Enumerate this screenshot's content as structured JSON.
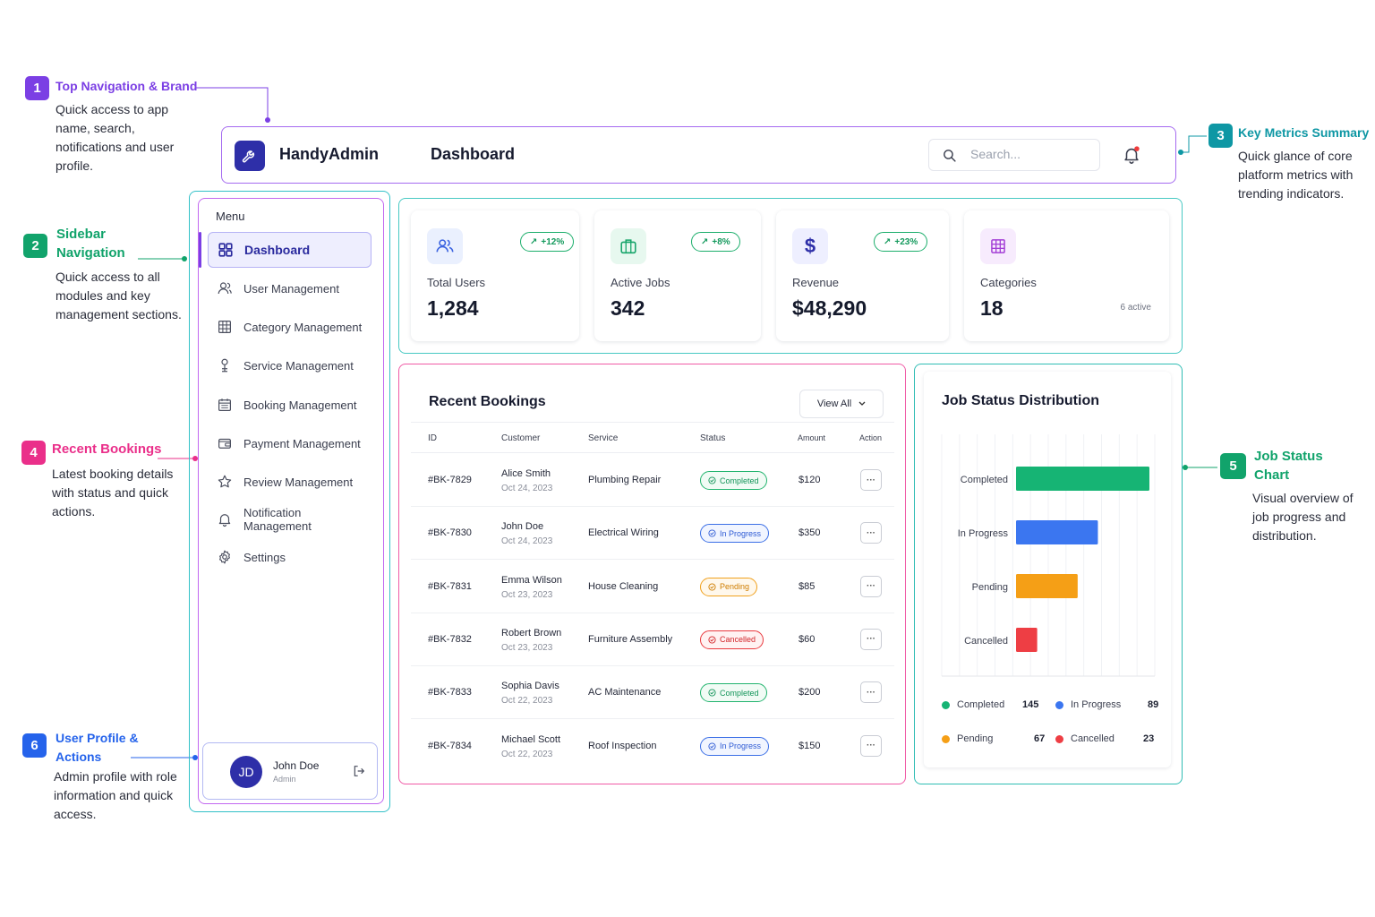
{
  "annotations": [
    {
      "num": "1",
      "title": "Top Navigation & Brand",
      "desc": "Quick access to app name, search, notifications and user profile.",
      "color": "#7b3fe4"
    },
    {
      "num": "2",
      "title": "Sidebar Navigation",
      "desc": "Quick access to all modules and key management sections.",
      "color": "#11a36b"
    },
    {
      "num": "3",
      "title": "Key Metrics Summary",
      "desc": "Quick glance of core platform metrics with trending indicators.",
      "color": "#0e97a4"
    },
    {
      "num": "4",
      "title": "Recent Bookings",
      "desc": "Latest booking details with status and quick actions.",
      "color": "#ea2f8a"
    },
    {
      "num": "5",
      "title": "Job Status Chart",
      "desc": "Visual overview of job progress and distribution.",
      "color": "#11a36b"
    },
    {
      "num": "6",
      "title": "User Profile & Actions",
      "desc": "Admin profile with role information and quick access.",
      "color": "#2563eb"
    }
  ],
  "header": {
    "brand": "HandyAdmin",
    "page_title": "Dashboard",
    "search_placeholder": "Search..."
  },
  "sidebar": {
    "menu_label": "Menu",
    "items": [
      {
        "label": "Dashboard",
        "icon": "grid-icon",
        "active": true
      },
      {
        "label": "User Management",
        "icon": "user-icon"
      },
      {
        "label": "Category Management",
        "icon": "table-icon"
      },
      {
        "label": "Service Management",
        "icon": "tool-icon"
      },
      {
        "label": "Booking Management",
        "icon": "calendar-icon"
      },
      {
        "label": "Payment Management",
        "icon": "wallet-icon"
      },
      {
        "label": "Review Management",
        "icon": "star-icon"
      },
      {
        "label": "Notification Management",
        "icon": "bell-icon"
      },
      {
        "label": "Settings",
        "icon": "gear-icon"
      }
    ],
    "profile": {
      "initials": "JD",
      "name": "John Doe",
      "role": "Admin"
    }
  },
  "metrics": [
    {
      "label": "Total Users",
      "value": "1,284",
      "trend": "+12%",
      "icon": "users-icon"
    },
    {
      "label": "Active Jobs",
      "value": "342",
      "trend": "+8%",
      "icon": "briefcase-icon"
    },
    {
      "label": "Revenue",
      "value": "$48,290",
      "trend": "+23%",
      "icon": "dollar-icon"
    },
    {
      "label": "Categories",
      "value": "18",
      "note": "6 active",
      "icon": "grid-icon"
    }
  ],
  "bookings": {
    "title": "Recent Bookings",
    "view_all": "View All",
    "columns": [
      "ID",
      "Customer",
      "Service",
      "Status",
      "Amount",
      "Action"
    ],
    "rows": [
      {
        "id": "#BK-7829",
        "customer": "Alice Smith",
        "date": "Oct 24, 2023",
        "service": "Plumbing Repair",
        "status": "Completed",
        "amount": "$120"
      },
      {
        "id": "#BK-7830",
        "customer": "John Doe",
        "date": "Oct 24, 2023",
        "service": "Electrical Wiring",
        "status": "In Progress",
        "amount": "$350"
      },
      {
        "id": "#BK-7831",
        "customer": "Emma Wilson",
        "date": "Oct 23, 2023",
        "service": "House Cleaning",
        "status": "Pending",
        "amount": "$85"
      },
      {
        "id": "#BK-7832",
        "customer": "Robert Brown",
        "date": "Oct 23, 2023",
        "service": "Furniture Assembly",
        "status": "Cancelled",
        "amount": "$60"
      },
      {
        "id": "#BK-7833",
        "customer": "Sophia Davis",
        "date": "Oct 22, 2023",
        "service": "AC Maintenance",
        "status": "Completed",
        "amount": "$200"
      },
      {
        "id": "#BK-7834",
        "customer": "Michael Scott",
        "date": "Oct 22, 2023",
        "service": "Roof Inspection",
        "status": "In Progress",
        "amount": "$150"
      }
    ]
  },
  "chart_data": {
    "type": "bar",
    "orientation": "horizontal",
    "title": "Job Status Distribution",
    "categories": [
      "Completed",
      "In Progress",
      "Pending",
      "Cancelled"
    ],
    "values": [
      145,
      89,
      67,
      23
    ],
    "colors": [
      "#16b474",
      "#3b76f0",
      "#f59f16",
      "#ee3e44"
    ],
    "xlim": [
      0,
      145
    ],
    "grid": true,
    "legend": "bottom"
  }
}
